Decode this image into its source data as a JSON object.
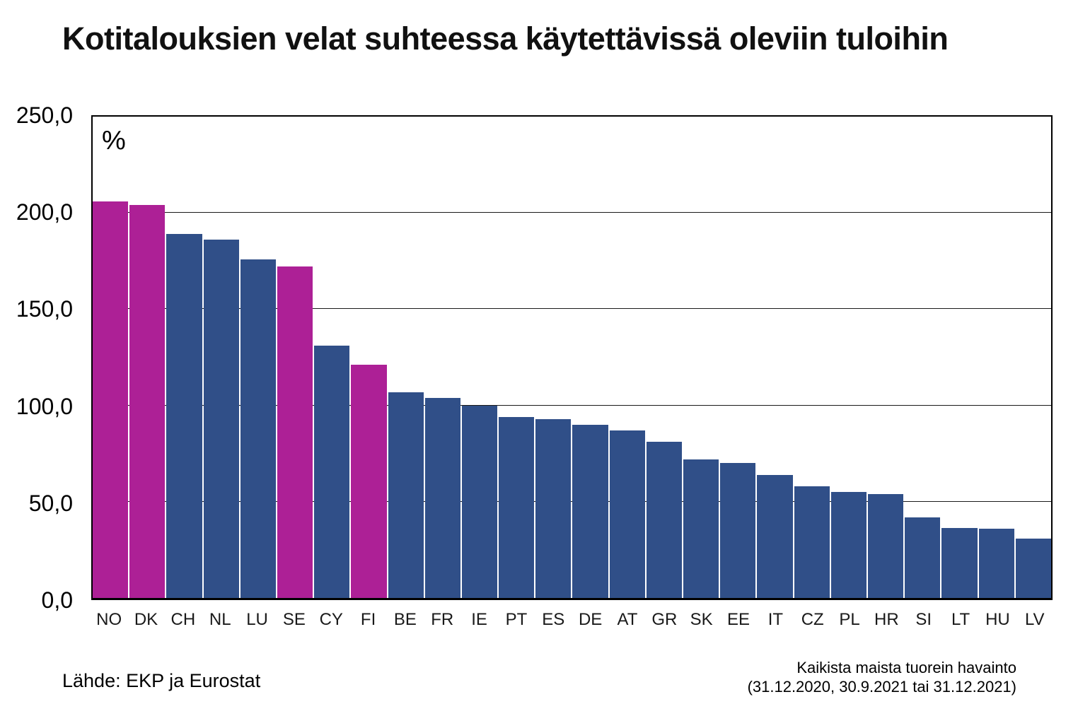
{
  "title": "Kotitalouksien velat suhteessa käytettävissä oleviin tuloihin",
  "source": "Lähde: EKP ja Eurostat",
  "note": {
    "line1": "Kaikista maista tuorein havainto",
    "line2": "(31.12.2020, 30.9.2021 tai 31.12.2021)"
  },
  "colors": {
    "highlight": "#AD2096",
    "default": "#304F88",
    "grid": "#1a1a1a",
    "axis": "#000000"
  },
  "chart_data": {
    "type": "bar",
    "title": "Kotitalouksien velat suhteessa käytettävissä oleviin tuloihin",
    "xlabel": "",
    "ylabel": "%",
    "ylim": [
      0,
      250
    ],
    "grid": true,
    "ytick_values": [
      0,
      50,
      100,
      150,
      200,
      250
    ],
    "ytick_labels": [
      "0,0",
      "50,0",
      "100,0",
      "150,0",
      "200,0",
      "250,0"
    ],
    "categories": [
      "NO",
      "DK",
      "CH",
      "NL",
      "LU",
      "SE",
      "CY",
      "FI",
      "BE",
      "FR",
      "IE",
      "PT",
      "ES",
      "DE",
      "AT",
      "GR",
      "SK",
      "EE",
      "IT",
      "CZ",
      "PL",
      "HR",
      "SI",
      "LT",
      "HU",
      "LV"
    ],
    "values": [
      206,
      204,
      189,
      186,
      176,
      172,
      131,
      121,
      107,
      104,
      100,
      94,
      93,
      90,
      87,
      81,
      72,
      70,
      64,
      58,
      55,
      54,
      42,
      36.5,
      36,
      31
    ],
    "highlighted": [
      "NO",
      "DK",
      "SE",
      "FI"
    ],
    "legend": null
  }
}
